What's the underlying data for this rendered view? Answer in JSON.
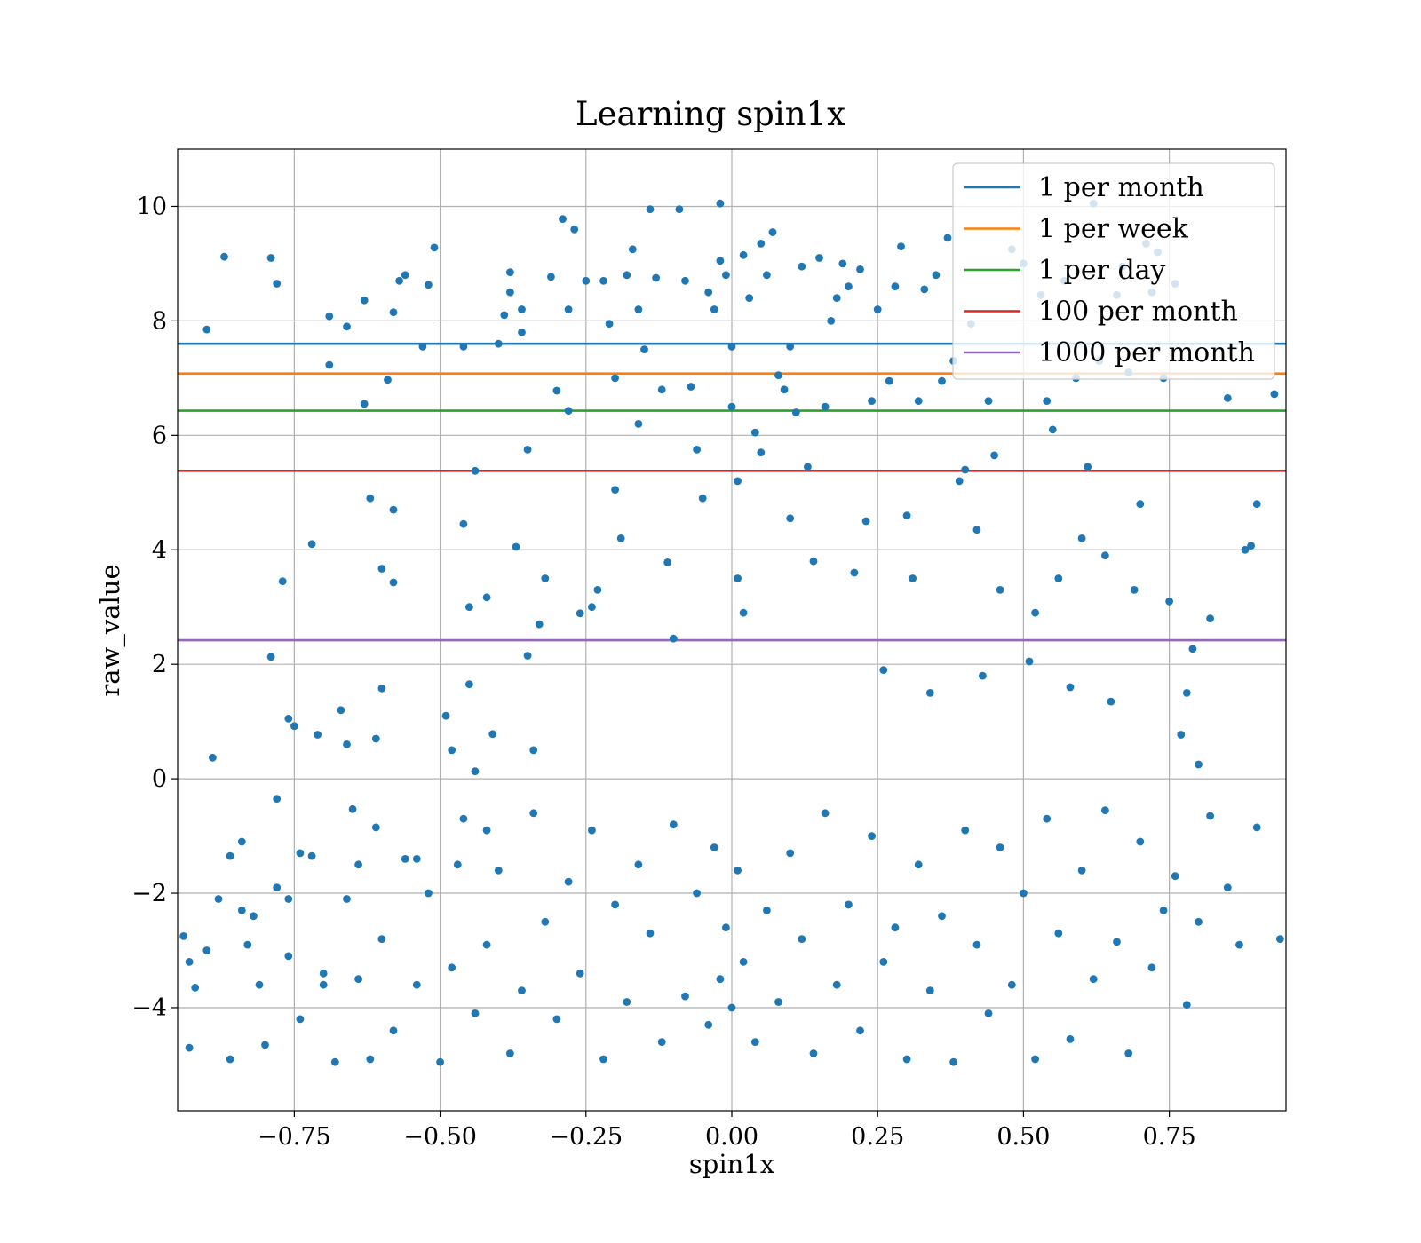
{
  "chart_data": {
    "type": "scatter",
    "title": "Learning spin1x",
    "xlabel": "spin1x",
    "ylabel": "raw_value",
    "xlim": [
      -0.95,
      0.95
    ],
    "ylim": [
      -5.8,
      11.0
    ],
    "x_ticks": [
      -0.75,
      -0.5,
      -0.25,
      0.0,
      0.25,
      0.5,
      0.75
    ],
    "x_tick_labels": [
      "−0.75",
      "−0.50",
      "−0.25",
      "0.00",
      "0.25",
      "0.50",
      "0.75"
    ],
    "y_ticks": [
      -4,
      -2,
      0,
      2,
      4,
      6,
      8,
      10
    ],
    "y_tick_labels": [
      "−4",
      "−2",
      "0",
      "2",
      "4",
      "6",
      "8",
      "10"
    ],
    "grid": true,
    "legend_position": "top-right",
    "point_color": "#1f77b4",
    "scatter_points": [
      [
        -0.9,
        7.85
      ],
      [
        -0.89,
        0.37
      ],
      [
        -0.87,
        9.12
      ],
      [
        -0.86,
        -1.35
      ],
      [
        -0.84,
        -2.3
      ],
      [
        -0.83,
        -2.9
      ],
      [
        -0.81,
        -3.6
      ],
      [
        -0.79,
        9.1
      ],
      [
        -0.78,
        8.65
      ],
      [
        -0.77,
        3.45
      ],
      [
        -0.76,
        1.05
      ],
      [
        -0.75,
        0.92
      ],
      [
        -0.79,
        2.13
      ],
      [
        -0.78,
        -0.35
      ],
      [
        -0.76,
        -2.1
      ],
      [
        -0.74,
        -1.3
      ],
      [
        -0.72,
        4.1
      ],
      [
        -0.71,
        0.77
      ],
      [
        -0.7,
        -3.4
      ],
      [
        -0.69,
        8.08
      ],
      [
        -0.69,
        7.23
      ],
      [
        -0.67,
        1.2
      ],
      [
        -0.66,
        0.6
      ],
      [
        -0.66,
        7.9
      ],
      [
        -0.65,
        -0.53
      ],
      [
        -0.64,
        -1.5
      ],
      [
        -0.63,
        8.36
      ],
      [
        -0.63,
        6.55
      ],
      [
        -0.62,
        4.9
      ],
      [
        -0.61,
        0.7
      ],
      [
        -0.61,
        -0.85
      ],
      [
        -0.6,
        3.67
      ],
      [
        -0.6,
        1.58
      ],
      [
        -0.59,
        6.97
      ],
      [
        -0.58,
        8.15
      ],
      [
        -0.58,
        4.7
      ],
      [
        -0.58,
        3.43
      ],
      [
        -0.57,
        8.7
      ],
      [
        -0.56,
        8.8
      ],
      [
        -0.54,
        -1.4
      ],
      [
        -0.53,
        7.55
      ],
      [
        -0.52,
        8.63
      ],
      [
        -0.51,
        9.28
      ],
      [
        -0.49,
        1.1
      ],
      [
        -0.48,
        0.5
      ],
      [
        -0.47,
        -1.5
      ],
      [
        -0.46,
        7.55
      ],
      [
        -0.46,
        4.45
      ],
      [
        -0.45,
        1.65
      ],
      [
        -0.45,
        3.0
      ],
      [
        -0.44,
        0.13
      ],
      [
        -0.44,
        5.38
      ],
      [
        -0.42,
        3.17
      ],
      [
        -0.42,
        -0.9
      ],
      [
        -0.41,
        0.78
      ],
      [
        -0.4,
        7.6
      ],
      [
        -0.39,
        8.1
      ],
      [
        -0.38,
        8.5
      ],
      [
        -0.38,
        8.85
      ],
      [
        -0.37,
        4.05
      ],
      [
        -0.36,
        7.8
      ],
      [
        -0.36,
        8.2
      ],
      [
        -0.35,
        5.75
      ],
      [
        -0.35,
        2.15
      ],
      [
        -0.34,
        0.5
      ],
      [
        -0.33,
        2.7
      ],
      [
        -0.32,
        3.5
      ],
      [
        -0.31,
        8.77
      ],
      [
        -0.3,
        6.78
      ],
      [
        -0.29,
        9.78
      ],
      [
        -0.28,
        6.43
      ],
      [
        -0.28,
        8.2
      ],
      [
        -0.27,
        9.6
      ],
      [
        -0.26,
        2.89
      ],
      [
        -0.25,
        8.7
      ],
      [
        -0.24,
        3.0
      ],
      [
        -0.23,
        3.3
      ],
      [
        -0.22,
        8.7
      ],
      [
        -0.21,
        7.95
      ],
      [
        -0.2,
        7.0
      ],
      [
        -0.2,
        5.05
      ],
      [
        -0.19,
        4.2
      ],
      [
        -0.18,
        8.8
      ],
      [
        -0.17,
        9.25
      ],
      [
        -0.16,
        8.2
      ],
      [
        -0.16,
        6.2
      ],
      [
        -0.15,
        7.5
      ],
      [
        -0.14,
        9.95
      ],
      [
        -0.13,
        8.75
      ],
      [
        -0.12,
        6.8
      ],
      [
        -0.11,
        3.78
      ],
      [
        -0.1,
        2.45
      ],
      [
        -0.09,
        9.95
      ],
      [
        -0.08,
        8.7
      ],
      [
        -0.07,
        6.85
      ],
      [
        -0.06,
        5.75
      ],
      [
        -0.05,
        4.9
      ],
      [
        -0.04,
        8.5
      ],
      [
        -0.03,
        8.2
      ],
      [
        -0.02,
        9.05
      ],
      [
        -0.02,
        10.05
      ],
      [
        -0.01,
        8.8
      ],
      [
        0.0,
        7.55
      ],
      [
        0.0,
        6.5
      ],
      [
        0.01,
        5.2
      ],
      [
        0.01,
        3.5
      ],
      [
        0.02,
        9.15
      ],
      [
        0.02,
        2.9
      ],
      [
        0.03,
        8.4
      ],
      [
        0.04,
        6.05
      ],
      [
        0.05,
        5.7
      ],
      [
        0.05,
        9.35
      ],
      [
        0.06,
        8.8
      ],
      [
        0.07,
        9.55
      ],
      [
        0.08,
        7.05
      ],
      [
        0.09,
        6.8
      ],
      [
        0.1,
        7.55
      ],
      [
        0.1,
        4.55
      ],
      [
        0.11,
        6.4
      ],
      [
        0.12,
        8.95
      ],
      [
        0.13,
        5.45
      ],
      [
        0.14,
        3.8
      ],
      [
        0.15,
        9.1
      ],
      [
        0.16,
        6.5
      ],
      [
        0.17,
        8.0
      ],
      [
        0.18,
        8.4
      ],
      [
        0.19,
        9.0
      ],
      [
        0.2,
        8.6
      ],
      [
        0.21,
        3.6
      ],
      [
        0.22,
        8.9
      ],
      [
        0.23,
        4.5
      ],
      [
        0.24,
        6.6
      ],
      [
        0.25,
        8.2
      ],
      [
        0.26,
        1.9
      ],
      [
        0.27,
        6.95
      ],
      [
        0.28,
        8.6
      ],
      [
        0.29,
        9.3
      ],
      [
        0.3,
        4.6
      ],
      [
        0.31,
        3.5
      ],
      [
        0.32,
        6.6
      ],
      [
        0.33,
        8.55
      ],
      [
        0.34,
        1.5
      ],
      [
        0.35,
        8.8
      ],
      [
        0.36,
        6.95
      ],
      [
        0.37,
        9.45
      ],
      [
        0.38,
        7.3
      ],
      [
        0.39,
        5.2
      ],
      [
        0.4,
        5.4
      ],
      [
        0.41,
        7.95
      ],
      [
        0.42,
        4.35
      ],
      [
        0.43,
        1.8
      ],
      [
        0.44,
        6.6
      ],
      [
        0.45,
        5.65
      ],
      [
        0.46,
        3.3
      ],
      [
        0.48,
        9.25
      ],
      [
        0.5,
        9.0
      ],
      [
        0.51,
        2.05
      ],
      [
        0.52,
        2.9
      ],
      [
        0.53,
        8.45
      ],
      [
        0.54,
        6.6
      ],
      [
        0.55,
        6.1
      ],
      [
        0.56,
        3.5
      ],
      [
        0.57,
        8.7
      ],
      [
        0.58,
        1.6
      ],
      [
        0.59,
        7.0
      ],
      [
        0.6,
        4.2
      ],
      [
        0.61,
        5.45
      ],
      [
        0.62,
        10.05
      ],
      [
        0.63,
        7.3
      ],
      [
        0.64,
        3.9
      ],
      [
        0.65,
        1.35
      ],
      [
        0.66,
        8.45
      ],
      [
        0.67,
        8.95
      ],
      [
        0.68,
        7.1
      ],
      [
        0.69,
        3.3
      ],
      [
        0.7,
        4.8
      ],
      [
        0.71,
        9.35
      ],
      [
        0.72,
        8.5
      ],
      [
        0.73,
        9.2
      ],
      [
        0.74,
        7.0
      ],
      [
        0.75,
        3.1
      ],
      [
        0.76,
        8.65
      ],
      [
        0.77,
        0.77
      ],
      [
        0.78,
        1.5
      ],
      [
        0.79,
        2.27
      ],
      [
        0.8,
        0.25
      ],
      [
        0.82,
        2.8
      ],
      [
        0.85,
        6.65
      ],
      [
        0.88,
        4.0
      ],
      [
        0.89,
        4.07
      ],
      [
        0.9,
        4.8
      ],
      [
        0.93,
        6.72
      ],
      [
        0.9,
        -0.85
      ],
      [
        0.87,
        -2.9
      ],
      [
        0.85,
        -1.9
      ],
      [
        0.82,
        -0.65
      ],
      [
        0.8,
        -2.5
      ],
      [
        0.78,
        -3.95
      ],
      [
        0.76,
        -1.7
      ],
      [
        0.74,
        -2.3
      ],
      [
        0.72,
        -3.3
      ],
      [
        0.7,
        -1.1
      ],
      [
        0.68,
        -4.8
      ],
      [
        0.66,
        -2.85
      ],
      [
        0.64,
        -0.55
      ],
      [
        0.62,
        -3.5
      ],
      [
        0.6,
        -1.6
      ],
      [
        0.58,
        -4.55
      ],
      [
        0.56,
        -2.7
      ],
      [
        0.54,
        -0.7
      ],
      [
        0.52,
        -4.9
      ],
      [
        0.5,
        -2.0
      ],
      [
        0.48,
        -3.6
      ],
      [
        0.46,
        -1.2
      ],
      [
        0.44,
        -4.1
      ],
      [
        0.42,
        -2.9
      ],
      [
        0.4,
        -0.9
      ],
      [
        0.38,
        -4.95
      ],
      [
        0.36,
        -2.4
      ],
      [
        0.34,
        -3.7
      ],
      [
        0.32,
        -1.5
      ],
      [
        0.3,
        -4.9
      ],
      [
        0.28,
        -2.6
      ],
      [
        0.26,
        -3.2
      ],
      [
        0.24,
        -1.0
      ],
      [
        0.22,
        -4.4
      ],
      [
        0.2,
        -2.2
      ],
      [
        0.18,
        -3.6
      ],
      [
        0.16,
        -0.6
      ],
      [
        0.14,
        -4.8
      ],
      [
        0.12,
        -2.8
      ],
      [
        0.1,
        -1.3
      ],
      [
        0.08,
        -3.9
      ],
      [
        0.06,
        -2.3
      ],
      [
        0.04,
        -4.6
      ],
      [
        0.02,
        -3.2
      ],
      [
        0.01,
        -1.6
      ],
      [
        0.0,
        -4.0
      ],
      [
        -0.01,
        -2.6
      ],
      [
        -0.02,
        -3.5
      ],
      [
        -0.03,
        -1.2
      ],
      [
        -0.04,
        -4.3
      ],
      [
        -0.06,
        -2.0
      ],
      [
        -0.08,
        -3.8
      ],
      [
        -0.1,
        -0.8
      ],
      [
        -0.12,
        -4.6
      ],
      [
        -0.14,
        -2.7
      ],
      [
        -0.16,
        -1.5
      ],
      [
        -0.18,
        -3.9
      ],
      [
        -0.2,
        -2.2
      ],
      [
        -0.22,
        -4.9
      ],
      [
        -0.24,
        -0.9
      ],
      [
        -0.26,
        -3.4
      ],
      [
        -0.28,
        -1.8
      ],
      [
        -0.3,
        -4.2
      ],
      [
        -0.32,
        -2.5
      ],
      [
        -0.34,
        -0.6
      ],
      [
        -0.36,
        -3.7
      ],
      [
        -0.38,
        -4.8
      ],
      [
        -0.4,
        -1.6
      ],
      [
        -0.42,
        -2.9
      ],
      [
        -0.44,
        -4.1
      ],
      [
        -0.46,
        -0.7
      ],
      [
        -0.48,
        -3.3
      ],
      [
        -0.5,
        -4.95
      ],
      [
        -0.52,
        -2.0
      ],
      [
        -0.54,
        -3.6
      ],
      [
        -0.56,
        -1.4
      ],
      [
        -0.58,
        -4.4
      ],
      [
        -0.6,
        -2.8
      ],
      [
        -0.62,
        -4.9
      ],
      [
        -0.64,
        -3.5
      ],
      [
        -0.66,
        -2.1
      ],
      [
        -0.68,
        -4.95
      ],
      [
        -0.7,
        -3.6
      ],
      [
        -0.72,
        -1.35
      ],
      [
        -0.74,
        -4.2
      ],
      [
        -0.76,
        -3.1
      ],
      [
        -0.78,
        -1.9
      ],
      [
        -0.8,
        -4.65
      ],
      [
        -0.82,
        -2.4
      ],
      [
        -0.84,
        -1.1
      ],
      [
        -0.86,
        -4.9
      ],
      [
        -0.88,
        -2.1
      ],
      [
        -0.9,
        -3.0
      ],
      [
        -0.93,
        -4.7
      ],
      [
        -0.93,
        -3.2
      ],
      [
        -0.94,
        -2.75
      ],
      [
        -0.92,
        -3.65
      ],
      [
        0.94,
        -2.8
      ]
    ],
    "series": [
      {
        "name": "1 per month",
        "type": "hline",
        "y": 7.6,
        "color": "#1f77b4"
      },
      {
        "name": "1 per week",
        "type": "hline",
        "y": 7.08,
        "color": "#ff7f0e"
      },
      {
        "name": "1 per day",
        "type": "hline",
        "y": 6.43,
        "color": "#2ca02c"
      },
      {
        "name": "100 per month",
        "type": "hline",
        "y": 5.38,
        "color": "#d62728"
      },
      {
        "name": "1000 per month",
        "type": "hline",
        "y": 2.42,
        "color": "#9467bd"
      }
    ]
  }
}
